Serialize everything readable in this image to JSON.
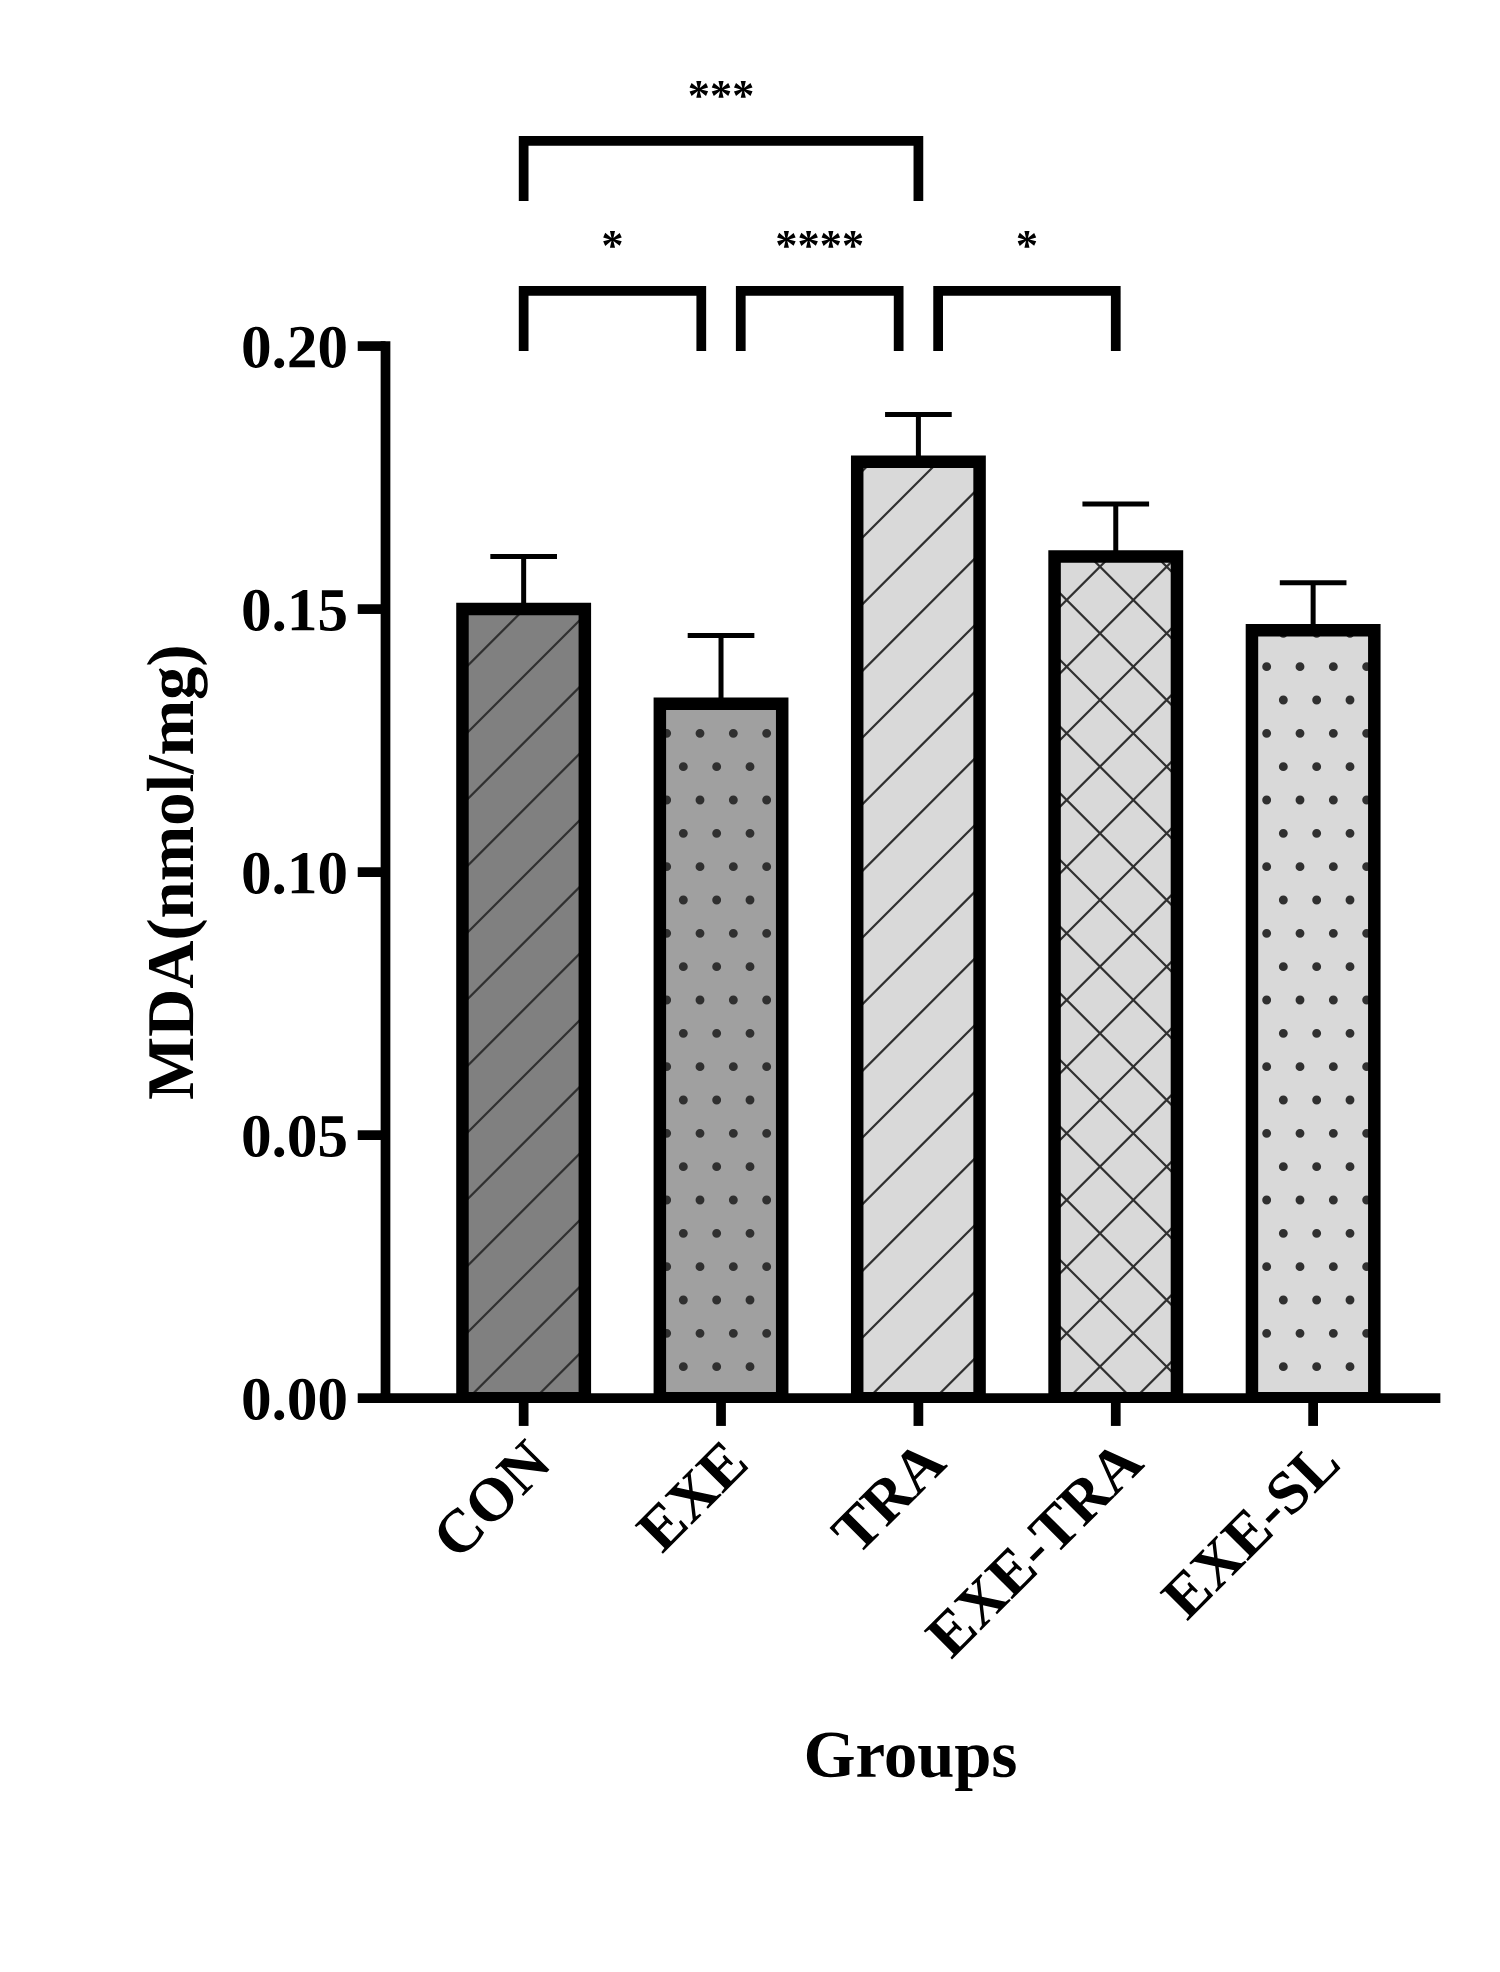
{
  "chart_data": {
    "type": "bar",
    "xlabel": "Groups",
    "ylabel": "MDA(nmol/mg)",
    "categories": [
      "CON",
      "EXE",
      "TRA",
      "EXE-TRA",
      "EXE-SL"
    ],
    "values": [
      0.15,
      0.132,
      0.178,
      0.16,
      0.146
    ],
    "errors": [
      0.01,
      0.013,
      0.009,
      0.01,
      0.009
    ],
    "colors": [
      "#808080",
      "#a0a0a0",
      "#d9d9d9",
      "#d9d9d9",
      "#d9d9d9"
    ],
    "ylim": [
      0,
      0.2
    ],
    "yticks": [
      {
        "value": 0,
        "label": "0.00"
      },
      {
        "value": 0.05,
        "label": "0.05"
      },
      {
        "value": 0.1,
        "label": "0.10"
      },
      {
        "value": 0.15,
        "label": "0.15"
      },
      {
        "value": 0.2,
        "label": "0.20"
      }
    ],
    "grid": false,
    "legend": false,
    "annotations": [
      "*",
      "****",
      "*",
      "***"
    ]
  }
}
